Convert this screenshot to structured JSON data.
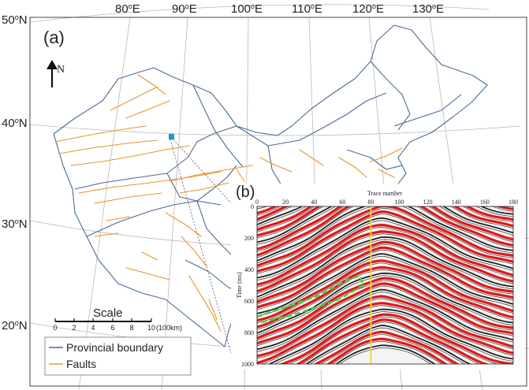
{
  "map": {
    "panel_label": "(a)",
    "north_label": "N",
    "lon_labels": [
      {
        "deg": "80",
        "unit": "°E"
      },
      {
        "deg": "90",
        "unit": "°E"
      },
      {
        "deg": "100",
        "unit": "°E"
      },
      {
        "deg": "110",
        "unit": "°E"
      },
      {
        "deg": "120",
        "unit": "°E"
      },
      {
        "deg": "130",
        "unit": "°E"
      }
    ],
    "lat_labels": [
      {
        "deg": "50",
        "unit": "°N"
      },
      {
        "deg": "40",
        "unit": "°N"
      },
      {
        "deg": "30",
        "unit": "°N"
      },
      {
        "deg": "20",
        "unit": "°N"
      }
    ],
    "scale": {
      "title": "Scale",
      "ticks": [
        "0",
        "2",
        "4",
        "6",
        "8",
        "10"
      ],
      "unit": "(100km)"
    },
    "legend": [
      {
        "label": "Provincial boundary",
        "color": "#4a6a9a"
      },
      {
        "label": "Faults",
        "color": "#e8952e"
      }
    ],
    "colors": {
      "boundary": "#4a6a9a",
      "fault": "#e8952e",
      "graticule": "#b0b0b0",
      "marker": "#1a9ac4"
    }
  },
  "seismic": {
    "panel_label": "(b)",
    "title": "Trace number",
    "ylabel": "Time (ms)",
    "x_ticks": [
      "0",
      "20",
      "40",
      "60",
      "80",
      "100",
      "120",
      "140",
      "160",
      "180"
    ],
    "y_ticks": [
      "0",
      "200",
      "400",
      "600",
      "800",
      "1000"
    ],
    "x_range": [
      0,
      180
    ],
    "y_range": [
      0,
      1000
    ],
    "highlight_trace": 80,
    "highlight_color": "#f2d43a",
    "region_color": "#3ad43a"
  }
}
